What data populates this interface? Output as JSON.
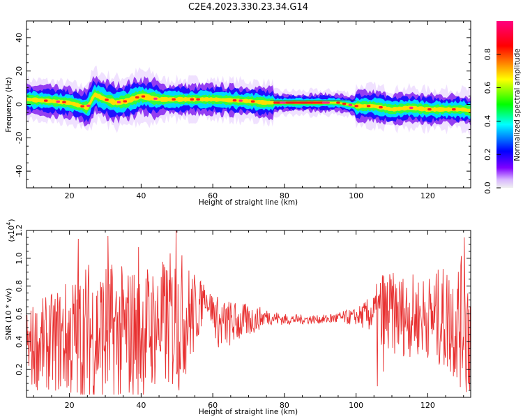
{
  "title": "C2E4.2023.330.23.34.G14",
  "chart_data": [
    {
      "type": "heatmap",
      "xlabel": "Height of straight line (km)",
      "ylabel": "Frequency (Hz)",
      "xlim": [
        8,
        132
      ],
      "ylim": [
        -50,
        50
      ],
      "xticks": [
        20,
        40,
        60,
        80,
        100,
        120
      ],
      "yticks": [
        -40,
        -20,
        0,
        20,
        40
      ],
      "colorbar": {
        "label": "Normalized spectral amplitude",
        "range": [
          0,
          1
        ],
        "ticks": [
          0.0,
          0.2,
          0.4,
          0.6,
          0.8
        ],
        "colors": [
          "#f0f0f0",
          "#7f00ff",
          "#0000ff",
          "#00ffff",
          "#00ff00",
          "#ffff00",
          "#ff0000",
          "#ff0080"
        ]
      },
      "ridge": {
        "x": [
          8,
          15,
          20,
          25,
          27,
          30,
          33,
          36,
          40,
          45,
          50,
          60,
          70,
          75,
          80,
          90,
          95,
          100,
          105,
          110,
          115,
          120,
          125,
          130,
          132
        ],
        "y": [
          3,
          2,
          1,
          -2,
          6,
          3,
          1,
          2,
          5,
          3,
          3,
          3,
          2,
          1,
          1,
          1,
          1,
          -1,
          -1,
          -3,
          -2,
          -3,
          -3,
          -3,
          -4
        ]
      }
    },
    {
      "type": "line",
      "xlabel": "Height of straight line (km)",
      "ylabel": "SNR (10 * v/v)",
      "multiplier_label": "(x10",
      "multiplier_exp": "4",
      "xlim": [
        8,
        132
      ],
      "ylim": [
        0,
        1.2
      ],
      "xticks": [
        20,
        40,
        60,
        80,
        100,
        120
      ],
      "yticks": [
        0.2,
        0.4,
        0.6,
        0.8,
        1.0,
        1.2
      ],
      "ytick_labels": [
        "0.2",
        "0.4",
        "0.6",
        "0.8",
        "1.0",
        "1.2"
      ],
      "color": "#e83030",
      "envelope": {
        "x": [
          8,
          15,
          20,
          25,
          30,
          35,
          40,
          45,
          50,
          55,
          58,
          62,
          70,
          75,
          80,
          90,
          100,
          105,
          107,
          110,
          120,
          128,
          132
        ],
        "center": [
          0.35,
          0.4,
          0.42,
          0.45,
          0.45,
          0.45,
          0.48,
          0.52,
          0.55,
          0.6,
          0.72,
          0.52,
          0.55,
          0.58,
          0.56,
          0.56,
          0.58,
          0.6,
          0.55,
          0.6,
          0.58,
          0.55,
          0.5
        ],
        "spread": [
          0.3,
          0.35,
          0.45,
          0.55,
          0.55,
          0.5,
          0.5,
          0.45,
          0.55,
          0.3,
          0.08,
          0.2,
          0.12,
          0.06,
          0.04,
          0.03,
          0.06,
          0.15,
          0.4,
          0.3,
          0.3,
          0.45,
          0.55
        ]
      },
      "spikes": [
        {
          "x": 22.5,
          "y": 1.14
        },
        {
          "x": 30.8,
          "y": 1.16
        },
        {
          "x": 39.3,
          "y": 1.08
        },
        {
          "x": 49.8,
          "y": 1.2
        },
        {
          "x": 57.5,
          "y": 0.81
        },
        {
          "x": 106.0,
          "y": 0.08
        },
        {
          "x": 130.2,
          "y": 1.15
        }
      ]
    }
  ]
}
